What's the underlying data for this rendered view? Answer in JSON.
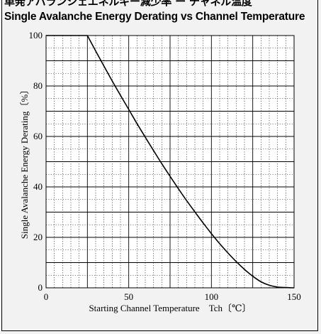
{
  "title_jp": "単発アバランシェエネルギー減少率 ー チャネル温度",
  "title_en": "Single Avalanche Energy Derating vs Channel Temperature",
  "chart_data": {
    "type": "line",
    "title": "Single Avalanche Energy Derating vs Channel Temperature",
    "xlabel": "Starting Channel Temperature　Tch〔℃〕",
    "ylabel": "Single Avalanche Energy Derating〔%〕",
    "xlim": [
      0,
      150
    ],
    "ylim": [
      0,
      100
    ],
    "x_ticks": [
      "0",
      "50",
      "100",
      "150"
    ],
    "y_ticks": [
      "0",
      "20",
      "40",
      "60",
      "80",
      "100"
    ],
    "grid": true,
    "series": [
      {
        "x": [
          0,
          25,
          30,
          35,
          40,
          45,
          50,
          55,
          60,
          65,
          70,
          75,
          80,
          85,
          90,
          95,
          100,
          105,
          110,
          115,
          120,
          125,
          130,
          135,
          140,
          145,
          150
        ],
        "y": [
          100,
          100,
          93.9,
          87.9,
          82.0,
          76.3,
          70.7,
          65.1,
          59.7,
          54.4,
          49.2,
          44.2,
          39.3,
          34.6,
          30.1,
          25.7,
          21.5,
          17.5,
          13.8,
          10.4,
          7.3,
          4.6,
          2.4,
          1.0,
          0.3,
          0.1,
          0
        ]
      }
    ]
  }
}
